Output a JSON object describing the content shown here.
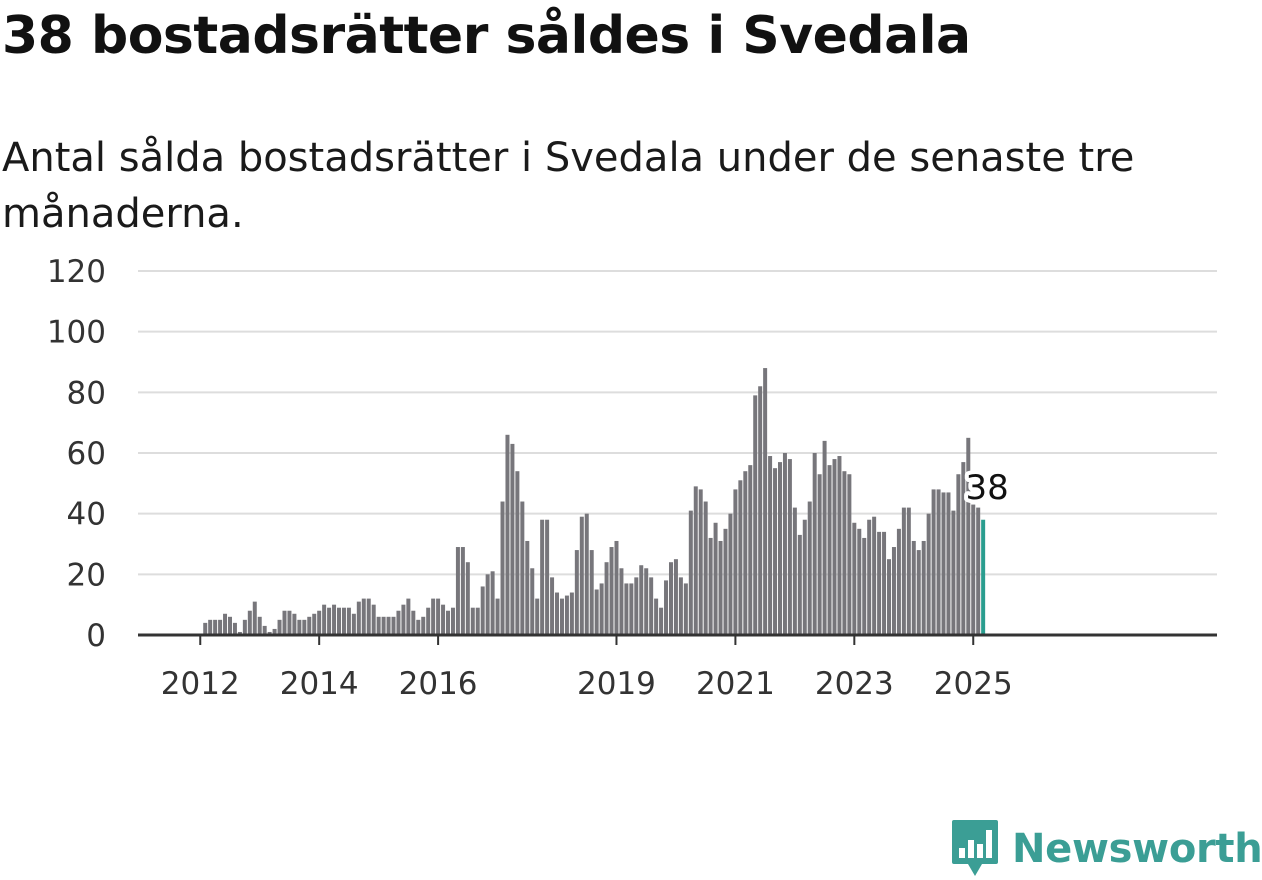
{
  "title": "38 bostadsrätter såldes i Svedala",
  "subtitle": "Antal sålda bostadsrätter i Svedala under de senaste tre månaderna.",
  "brand": "Newsworthy",
  "colors": {
    "bar": "#77767b",
    "highlight": "#2a9d8f",
    "grid": "#dddddd",
    "axis": "#333333",
    "brand": "#3b9e95"
  },
  "chart_data": {
    "type": "bar",
    "title": "38 bostadsrätter såldes i Svedala",
    "subtitle": "Antal sålda bostadsrätter i Svedala under de senaste tre månaderna.",
    "xlabel": "",
    "ylabel": "",
    "ylim": [
      0,
      120
    ],
    "yticks": [
      0,
      20,
      40,
      60,
      80,
      100,
      120
    ],
    "xticks": [
      2012,
      2014,
      2016,
      2019,
      2021,
      2023,
      2025
    ],
    "grid": true,
    "legend": "none",
    "x_start": "2011-01",
    "x_step": "month",
    "values": [
      0,
      0,
      0,
      0,
      0,
      0,
      0,
      0,
      0,
      0,
      0,
      0,
      0,
      4,
      5,
      5,
      5,
      7,
      6,
      4,
      1,
      5,
      8,
      11,
      6,
      3,
      1,
      2,
      5,
      8,
      8,
      7,
      5,
      5,
      6,
      7,
      8,
      10,
      9,
      10,
      9,
      9,
      9,
      7,
      11,
      12,
      12,
      10,
      6,
      6,
      6,
      6,
      8,
      10,
      12,
      8,
      5,
      6,
      9,
      12,
      12,
      10,
      8,
      9,
      29,
      29,
      24,
      9,
      9,
      16,
      20,
      21,
      12,
      44,
      66,
      63,
      54,
      44,
      31,
      22,
      12,
      38,
      38,
      19,
      14,
      12,
      13,
      14,
      28,
      39,
      40,
      28,
      15,
      17,
      24,
      29,
      31,
      22,
      17,
      17,
      19,
      23,
      22,
      19,
      12,
      9,
      18,
      24,
      25,
      19,
      17,
      41,
      49,
      48,
      44,
      32,
      37,
      31,
      35,
      40,
      48,
      51,
      54,
      56,
      79,
      82,
      88,
      59,
      55,
      57,
      60,
      58,
      42,
      33,
      38,
      44,
      60,
      53,
      64,
      56,
      58,
      59,
      54,
      53,
      37,
      35,
      32,
      38,
      39,
      34,
      34,
      25,
      29,
      35,
      42,
      42,
      31,
      28,
      31,
      40,
      48,
      48,
      47,
      47,
      41,
      53,
      57,
      65,
      43,
      42,
      38
    ],
    "highlight_last": true,
    "annotation": "38"
  }
}
